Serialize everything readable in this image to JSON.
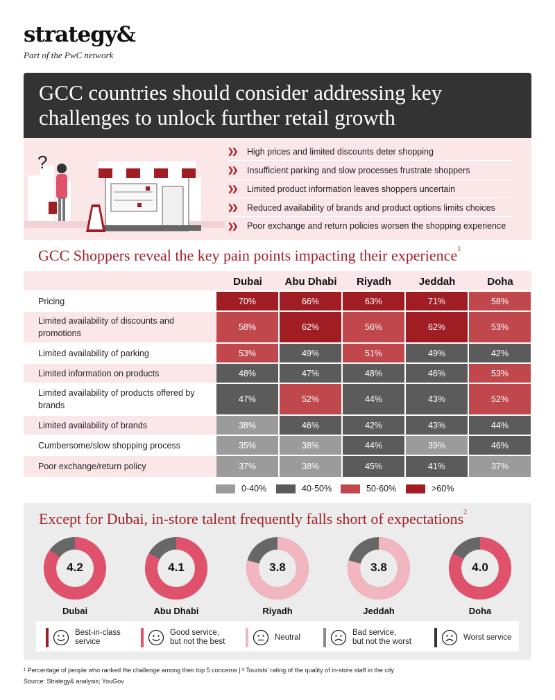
{
  "brand": {
    "name": "strategy&",
    "tagline": "Part of the PwC network"
  },
  "banner_title": "GCC countries should consider addressing key challenges to unlock further retail growth",
  "challenges": [
    "High prices and limited discounts deter shopping",
    "Insufficient parking and slow processes frustrate shoppers",
    "Limited product information leaves shoppers uncertain",
    "Reduced availability of brands and product options limits choices",
    "Poor exchange and return policies worsen the shopping experience"
  ],
  "illustration": {
    "question_mark": "?"
  },
  "chart_data": [
    {
      "type": "table",
      "title": "GCC Shoppers reveal the key pain points impacting their experience",
      "title_note": "1",
      "columns": [
        "Dubai",
        "Abu Dhabi",
        "Riyadh",
        "Jeddah",
        "Doha"
      ],
      "rows": [
        {
          "label": "Pricing",
          "values": [
            70,
            66,
            63,
            71,
            58
          ]
        },
        {
          "label": "Limited availability of discounts and promotions",
          "values": [
            58,
            62,
            56,
            62,
            53
          ]
        },
        {
          "label": "Limited availability of parking",
          "values": [
            53,
            49,
            51,
            49,
            42
          ]
        },
        {
          "label": "Limited information on products",
          "values": [
            48,
            47,
            48,
            46,
            53
          ]
        },
        {
          "label": "Limited availability of products offered by brands",
          "values": [
            47,
            52,
            44,
            43,
            52
          ]
        },
        {
          "label": "Limited availability of brands",
          "values": [
            38,
            46,
            42,
            43,
            44
          ]
        },
        {
          "label": "Cumbersome/slow shopping process",
          "values": [
            35,
            38,
            44,
            39,
            46
          ]
        },
        {
          "label": "Poor exchange/return policy",
          "values": [
            37,
            38,
            45,
            41,
            37
          ]
        }
      ],
      "value_suffix": "%",
      "legend": [
        {
          "label": "0-40%",
          "color": "#9b9b9b"
        },
        {
          "label": "40-50%",
          "color": "#5b5b5b"
        },
        {
          "label": "50-60%",
          "color": "#c0474c"
        },
        {
          "label": ">60%",
          "color": "#a11d24"
        }
      ]
    },
    {
      "type": "pie",
      "title": "Except for Dubai, in-store talent frequently falls short of expectations",
      "title_note": "2",
      "categories": [
        "Dubai",
        "Abu Dhabi",
        "Riyadh",
        "Jeddah",
        "Doha"
      ],
      "values": [
        "4.2",
        "4.1",
        "3.8",
        "3.8",
        "4.0"
      ],
      "fractions": [
        0.85,
        0.83,
        0.79,
        0.79,
        0.83
      ],
      "colors": [
        "#e0526b",
        "#e0526b",
        "#f2b6c0",
        "#f2b6c0",
        "#e0526b"
      ],
      "track_color": "#676767"
    }
  ],
  "rating_scale": [
    {
      "label": "Best-in-class service",
      "line1": "Best-in-class",
      "line2": "service",
      "color": "#a11d24",
      "face": "smile"
    },
    {
      "label": "Good service, but not the best",
      "line1": "Good service,",
      "line2": "but not the best",
      "color": "#e0526b",
      "face": "smile"
    },
    {
      "label": "Neutral",
      "line1": "Neutral",
      "line2": "",
      "color": "#f2b6c0",
      "face": "neutral"
    },
    {
      "label": "Bad service, but not the worst",
      "line1": "Bad service,",
      "line2": "but not the worst",
      "color": "#8a8a8a",
      "face": "frown"
    },
    {
      "label": "Worst service",
      "line1": "Worst service",
      "line2": "",
      "color": "#333333",
      "face": "frown"
    }
  ],
  "footnotes": {
    "note1": "¹ Percentage of people who ranked the challenge among their top 5 concerns  |  ² Tourists' rating of the quality of in-store staff in the city",
    "source": "Source: Strategy& analysis; YouGov"
  }
}
